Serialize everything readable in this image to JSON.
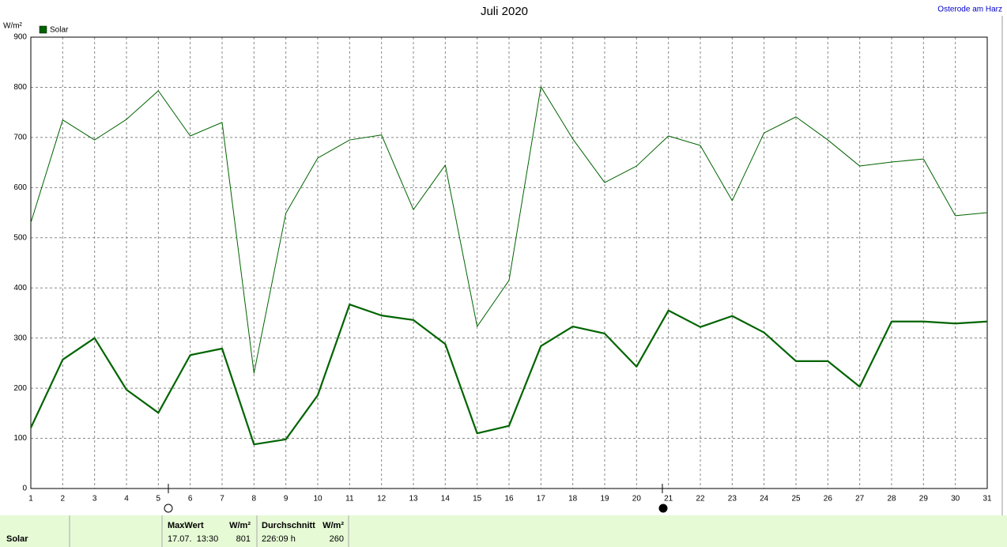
{
  "chart_data": {
    "type": "line",
    "title": "Juli 2020",
    "location": "Osterode am Harz",
    "y_label": "W/m²",
    "x": [
      1,
      2,
      3,
      4,
      5,
      6,
      7,
      8,
      9,
      10,
      11,
      12,
      13,
      14,
      15,
      16,
      17,
      18,
      19,
      20,
      21,
      22,
      23,
      24,
      25,
      26,
      27,
      28,
      29,
      30,
      31
    ],
    "xlim": [
      1,
      31
    ],
    "series": [
      {
        "name": "Solar",
        "color": "#006400",
        "width": 2.2,
        "values": [
          121,
          257,
          300,
          197,
          151,
          266,
          279,
          88,
          98,
          186,
          367,
          345,
          336,
          288,
          110,
          125,
          284,
          323,
          309,
          243,
          355,
          322,
          344,
          311,
          254,
          254,
          203,
          333,
          333,
          329,
          333
        ]
      },
      {
        "color": "#006400",
        "width": 1,
        "values": [
          530,
          735,
          695,
          736,
          793,
          703,
          730,
          230,
          549,
          659,
          695,
          705,
          556,
          645,
          323,
          415,
          801,
          697,
          610,
          643,
          703,
          684,
          574,
          709,
          741,
          695,
          643,
          651,
          657,
          544,
          550
        ]
      }
    ],
    "ylim": [
      0,
      900
    ],
    "yticks": [
      0,
      100,
      200,
      300,
      400,
      500,
      600,
      700,
      800,
      900
    ],
    "grid": true
  },
  "footer": {
    "label": "Solar",
    "max": {
      "header": "MaxWert",
      "unit": "W/m²",
      "date": "17.07.  13:30",
      "value": 801
    },
    "avg": {
      "header": "Durchschnitt",
      "unit": "W/m²",
      "duration": "226:09 h",
      "value": 260
    }
  }
}
